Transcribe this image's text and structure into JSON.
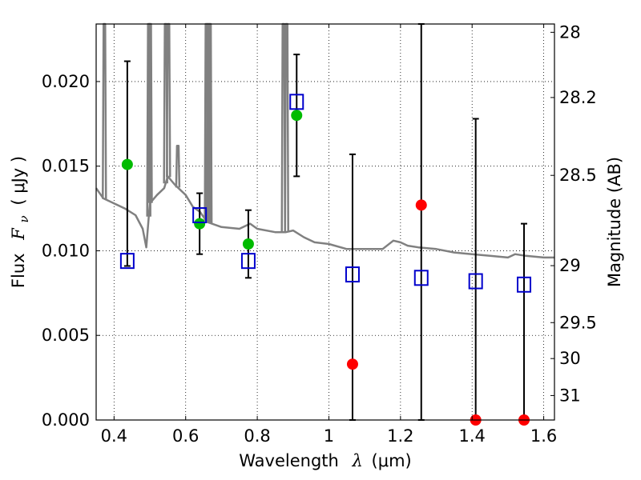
{
  "chart_data": {
    "type": "scatter",
    "title": "",
    "xlabel_text": "Wavelength",
    "xlabel_symbol": "λ",
    "xlabel_unit": "(μm)",
    "ylabel_text": "Flux",
    "ylabel_symbol": "F",
    "ylabel_sub": "ν",
    "ylabel_unit": "( μJy )",
    "y2label": "Magnitude (AB)",
    "xlim": [
      0.35,
      1.63
    ],
    "ylim": [
      0.0,
      0.0234
    ],
    "x_ticks": [
      {
        "value": 0.4,
        "label": "0.4"
      },
      {
        "value": 0.6,
        "label": "0.6"
      },
      {
        "value": 0.8,
        "label": "0.8"
      },
      {
        "value": 1.0,
        "label": "1"
      },
      {
        "value": 1.2,
        "label": "1.2"
      },
      {
        "value": 1.4,
        "label": "1.4"
      },
      {
        "value": 1.6,
        "label": "1.6"
      }
    ],
    "y_ticks": [
      {
        "value": 0.0,
        "label": "0.000"
      },
      {
        "value": 0.005,
        "label": "0.005"
      },
      {
        "value": 0.01,
        "label": "0.010"
      },
      {
        "value": 0.015,
        "label": "0.015"
      },
      {
        "value": 0.02,
        "label": "0.020"
      }
    ],
    "y2_ticks": [
      {
        "mag": 28,
        "label": "28"
      },
      {
        "mag": 28.2,
        "label": "28.2"
      },
      {
        "mag": 28.5,
        "label": "28.5"
      },
      {
        "mag": 29,
        "label": "29"
      },
      {
        "mag": 29.5,
        "label": "29.5"
      },
      {
        "mag": 30,
        "label": "30"
      },
      {
        "mag": 31,
        "label": "31"
      }
    ],
    "grid": true,
    "colors": {
      "model": "#808080",
      "observed": "#00bb00",
      "upper_limit": "#ff0000",
      "model_flux": "#0000cc",
      "errorbar": "#000000"
    },
    "model_spectrum": {
      "x": [
        0.35,
        0.37,
        0.4,
        0.43,
        0.46,
        0.48,
        0.49,
        0.5,
        0.52,
        0.54,
        0.55,
        0.57,
        0.6,
        0.62,
        0.64,
        0.66,
        0.7,
        0.75,
        0.78,
        0.8,
        0.85,
        0.88,
        0.9,
        0.93,
        0.96,
        1.0,
        1.05,
        1.1,
        1.15,
        1.18,
        1.2,
        1.22,
        1.25,
        1.3,
        1.35,
        1.4,
        1.45,
        1.5,
        1.52,
        1.55,
        1.6,
        1.63
      ],
      "y": [
        0.0137,
        0.0131,
        0.0128,
        0.0125,
        0.0121,
        0.0113,
        0.0102,
        0.0128,
        0.0133,
        0.0137,
        0.0144,
        0.0139,
        0.0133,
        0.0126,
        0.0123,
        0.0117,
        0.0114,
        0.0113,
        0.0116,
        0.0113,
        0.0111,
        0.0111,
        0.0112,
        0.0108,
        0.0105,
        0.0104,
        0.0101,
        0.0101,
        0.0101,
        0.0106,
        0.0105,
        0.0103,
        0.0102,
        0.0101,
        0.0099,
        0.0098,
        0.0097,
        0.0096,
        0.0098,
        0.0097,
        0.0096,
        0.0096
      ]
    },
    "emission_lines": [
      {
        "x": 0.373,
        "peak": 0.0234
      },
      {
        "x": 0.497,
        "peak": 0.0234
      },
      {
        "x": 0.501,
        "peak": 0.0234
      },
      {
        "x": 0.544,
        "peak": 0.0234
      },
      {
        "x": 0.552,
        "peak": 0.0234
      },
      {
        "x": 0.578,
        "peak": 0.0162
      },
      {
        "x": 0.658,
        "peak": 0.0234
      },
      {
        "x": 0.663,
        "peak": 0.0234
      },
      {
        "x": 0.668,
        "peak": 0.0234
      },
      {
        "x": 0.873,
        "peak": 0.0234
      },
      {
        "x": 0.882,
        "peak": 0.0234
      }
    ],
    "series": [
      {
        "kind": "observed",
        "x": [
          0.437,
          0.639,
          0.775,
          0.91
        ],
        "values": [
          0.0151,
          0.0116,
          0.0104,
          0.018
        ],
        "err_low": [
          0.0091,
          0.0098,
          0.0084,
          0.0144
        ],
        "err_high": [
          0.0212,
          0.0134,
          0.0124,
          0.0216
        ]
      },
      {
        "kind": "upper_limit",
        "x": [
          1.066,
          1.258,
          1.41,
          1.545
        ],
        "values": [
          0.0033,
          0.0127,
          0.0,
          0.0
        ],
        "err_low": [
          0.0,
          0.0,
          0.0,
          0.0
        ],
        "err_high": [
          0.0157,
          0.0234,
          0.0178,
          0.0116
        ]
      },
      {
        "kind": "model_flux",
        "x": [
          0.437,
          0.639,
          0.775,
          0.91,
          1.066,
          1.258,
          1.41,
          1.545
        ],
        "values": [
          0.0094,
          0.0121,
          0.0094,
          0.0188,
          0.0086,
          0.0084,
          0.0082,
          0.008
        ]
      }
    ]
  }
}
